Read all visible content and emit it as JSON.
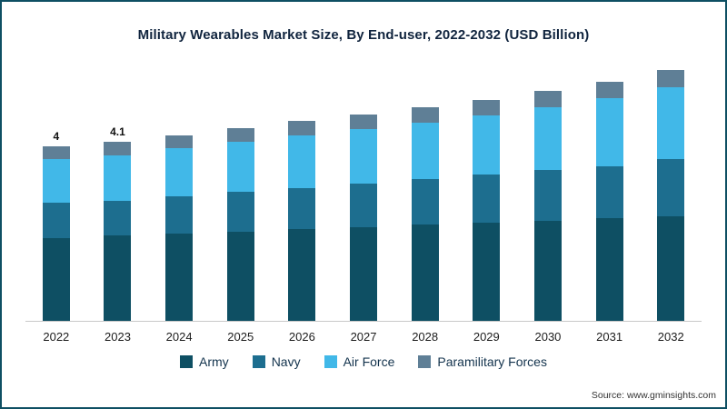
{
  "title": "Military Wearables Market Size, By End-user, 2022-2032 (USD Billion)",
  "source": "Source: www.gminsights.com",
  "colors": {
    "army": "#0e4f63",
    "navy": "#1d6e8f",
    "air_force": "#41b8e8",
    "paramilitary": "#5f7f96",
    "card_border": "#0e4f63",
    "title_text": "#10243e",
    "axis_line": "#c9c9c9"
  },
  "chart_data": {
    "type": "bar",
    "stacked": true,
    "title": "Military Wearables Market Size, By End-user, 2022-2032 (USD Billion)",
    "xlabel": "",
    "ylabel": "USD Billion",
    "ylim": [
      0,
      6
    ],
    "grid": false,
    "legend_position": "bottom",
    "categories": [
      "2022",
      "2023",
      "2024",
      "2025",
      "2026",
      "2027",
      "2028",
      "2029",
      "2030",
      "2031",
      "2032"
    ],
    "series": [
      {
        "name": "Army",
        "color_key": "army",
        "values": [
          1.9,
          1.95,
          2.0,
          2.05,
          2.1,
          2.15,
          2.2,
          2.25,
          2.3,
          2.35,
          2.4
        ]
      },
      {
        "name": "Navy",
        "color_key": "navy",
        "values": [
          0.8,
          0.8,
          0.85,
          0.9,
          0.95,
          1.0,
          1.05,
          1.1,
          1.15,
          1.2,
          1.3
        ]
      },
      {
        "name": "Air Force",
        "color_key": "air_force",
        "values": [
          1.0,
          1.05,
          1.1,
          1.15,
          1.2,
          1.25,
          1.3,
          1.35,
          1.45,
          1.55,
          1.65
        ]
      },
      {
        "name": "Paramilitary Forces",
        "color_key": "paramilitary",
        "values": [
          0.3,
          0.3,
          0.3,
          0.32,
          0.33,
          0.34,
          0.35,
          0.36,
          0.37,
          0.38,
          0.4
        ]
      }
    ],
    "totals": [
      4.0,
      4.1,
      4.25,
      4.42,
      4.58,
      4.74,
      4.9,
      5.06,
      5.27,
      5.48,
      5.75
    ],
    "bar_labels": [
      "4",
      "4.1",
      "",
      "",
      "",
      "",
      "",
      "",
      "",
      "",
      ""
    ]
  }
}
